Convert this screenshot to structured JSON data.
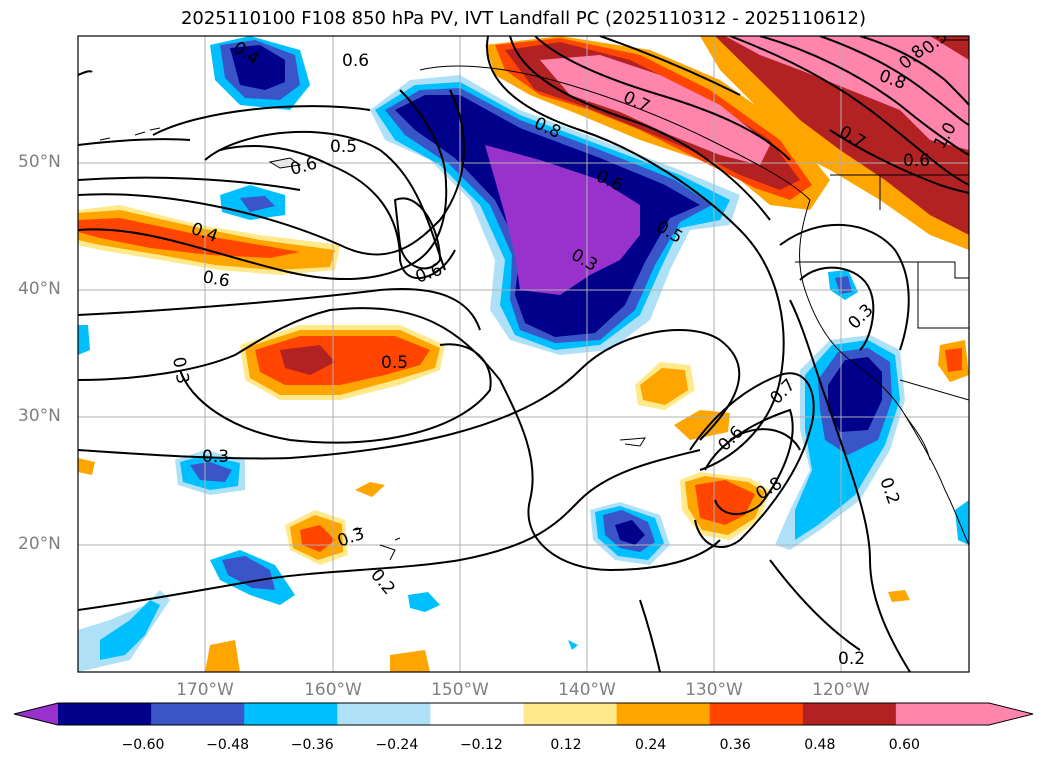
{
  "title": "2025110100 F108 850 hPa PV, IVT Landfall PC (2025110312 - 2025110612)",
  "lat_labels": [
    "50°N",
    "40°N",
    "30°N",
    "20°N"
  ],
  "lon_labels": [
    "170°W",
    "160°W",
    "150°W",
    "140°W",
    "130°W",
    "120°W"
  ],
  "contour_labels": [
    "0.4",
    "0.6",
    "0.5",
    "0.6",
    "0.8",
    "0.7",
    "0.6",
    "0.3",
    "0.5",
    "0.8",
    "0.6",
    "0.4",
    "0.6",
    "0.6",
    "0.3",
    "0.3",
    "0.5",
    "0.3",
    "0.7",
    "0.6",
    "0.8",
    "0.2",
    "0.3",
    "0.2",
    "0.2",
    "0.5",
    "0.8",
    "0.7",
    "1.0"
  ],
  "colorbar": {
    "ticks": [
      "−0.60",
      "−0.48",
      "−0.36",
      "−0.24",
      "−0.12",
      "0.12",
      "0.24",
      "0.36",
      "0.48",
      "0.60"
    ],
    "colors": [
      "#9932cc",
      "#00008b",
      "#3a55c8",
      "#00bfff",
      "#aee1f8",
      "#ffffff",
      "#ffe98a",
      "#ffa500",
      "#ff4500",
      "#b22222",
      "#ff85ad",
      "#ff85ad"
    ]
  },
  "palette": {
    "purple": "#9932cc",
    "navy": "#00008b",
    "royal": "#3a55c8",
    "sky": "#00bfff",
    "pale_blue": "#aee1f8",
    "pale_yellow": "#ffe98a",
    "orange": "#ffa500",
    "red_orange": "#ff4500",
    "firebrick": "#b22222",
    "pink": "#ff85ad"
  }
}
